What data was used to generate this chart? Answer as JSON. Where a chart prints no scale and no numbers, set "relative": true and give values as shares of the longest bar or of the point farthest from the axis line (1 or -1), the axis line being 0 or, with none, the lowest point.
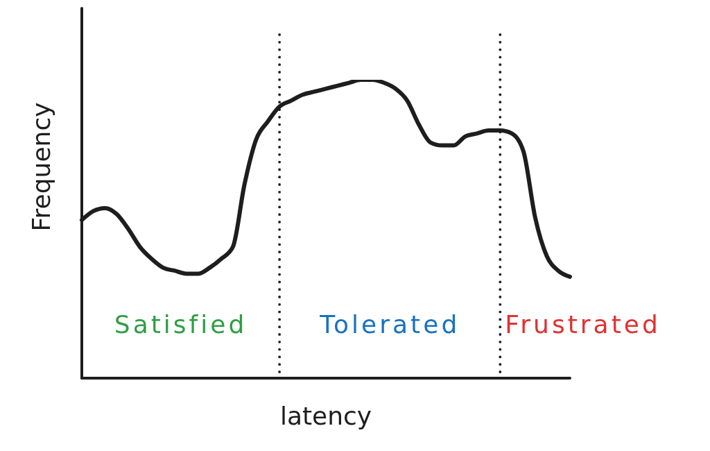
{
  "chart_data": {
    "type": "line",
    "xlabel": "latency",
    "ylabel": "Frequency",
    "relative": true,
    "marker": "none",
    "categories": [
      null,
      null,
      null,
      null,
      null,
      null,
      null,
      null,
      null,
      null,
      null,
      null,
      null,
      null,
      null,
      null,
      null,
      null,
      null,
      null,
      null,
      null,
      null,
      null,
      null,
      null,
      null,
      null,
      null,
      null,
      null,
      null,
      null,
      null,
      null,
      null,
      null,
      null,
      null,
      null,
      null,
      null,
      null
    ],
    "color": "#1e1e1e",
    "values": [
      0.53,
      0.56,
      0.57,
      0.55,
      0.5,
      0.44,
      0.4,
      0.37,
      0.36,
      0.35,
      0.35,
      0.37,
      0.4,
      0.44,
      0.65,
      0.8,
      0.86,
      0.91,
      0.93,
      0.95,
      0.96,
      0.97,
      0.98,
      0.99,
      1.0,
      1.0,
      0.99,
      0.97,
      0.93,
      0.85,
      0.79,
      0.78,
      0.78,
      0.81,
      0.82,
      0.83,
      0.83,
      0.82,
      0.76,
      0.54,
      0.41,
      0.36,
      0.34
    ],
    "annotations": [
      "Satisfied",
      "Tolerated",
      "Frustrated"
    ]
  }
}
